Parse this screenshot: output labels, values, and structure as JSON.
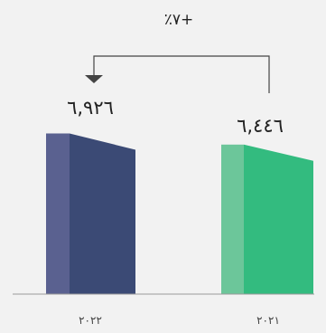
{
  "chart_data": {
    "type": "bar",
    "categories": [
      "٢٠٢٢",
      "٢٠٢١"
    ],
    "values": [
      6926,
      6446
    ],
    "value_labels": [
      "٦,٩٢٦",
      "٦,٤٤٦"
    ],
    "change_label": "٪٧+",
    "ylim": [
      0,
      8000
    ],
    "grid": false,
    "legend": "none",
    "colors": {
      "bar_front": [
        "#3b4a75",
        "#33bb7f"
      ],
      "bar_side": [
        "#5a6190",
        "#6cc69a"
      ],
      "axis": "#9a9a9a",
      "arrow": "#444444",
      "background": "#f2f2f2"
    }
  }
}
